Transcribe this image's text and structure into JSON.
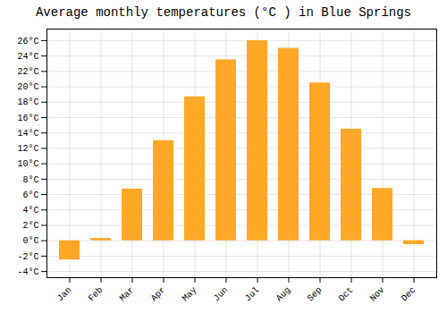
{
  "chart_data": {
    "type": "bar",
    "title": "Average monthly temperatures (°C ) in Blue Springs",
    "categories": [
      "Jan",
      "Feb",
      "Mar",
      "Apr",
      "May",
      "Jun",
      "Jul",
      "Aug",
      "Sep",
      "Oct",
      "Nov",
      "Dec"
    ],
    "values": [
      -2.5,
      0.3,
      6.7,
      13.0,
      18.7,
      23.5,
      26.0,
      25.0,
      20.5,
      14.5,
      6.8,
      -0.5
    ],
    "color": "#FFA726",
    "ylim": [
      -4.8,
      27.5
    ],
    "yticks": [
      {
        "value": -4,
        "label": "-4°C"
      },
      {
        "value": -2,
        "label": "-2°C"
      },
      {
        "value": 0,
        "label": "0°C"
      },
      {
        "value": 2,
        "label": "2°C"
      },
      {
        "value": 4,
        "label": "4°C"
      },
      {
        "value": 6,
        "label": "6°C"
      },
      {
        "value": 8,
        "label": "8°C"
      },
      {
        "value": 10,
        "label": "10°C"
      },
      {
        "value": 12,
        "label": "12°C"
      },
      {
        "value": 14,
        "label": "14°C"
      },
      {
        "value": 16,
        "label": "16°C"
      },
      {
        "value": 18,
        "label": "18°C"
      },
      {
        "value": 20,
        "label": "20°C"
      },
      {
        "value": 22,
        "label": "22°C"
      },
      {
        "value": 24,
        "label": "24°C"
      },
      {
        "value": 26,
        "label": "26°C"
      }
    ],
    "grid": true
  }
}
